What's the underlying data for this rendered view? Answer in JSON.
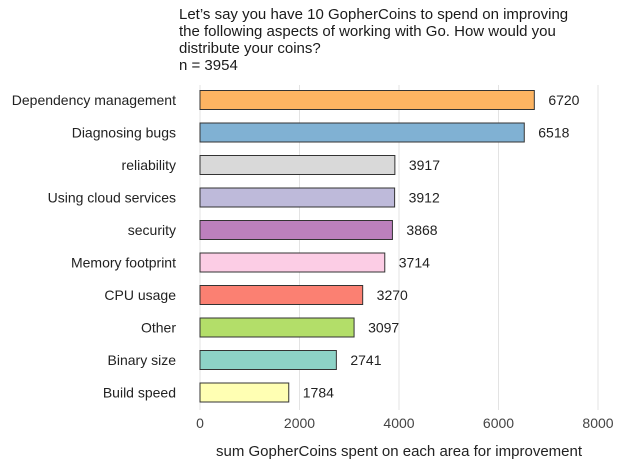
{
  "title_lines": [
    "Let’s say you have 10 GopherCoins to spend on improving",
    "the following aspects of working with Go. How would you",
    "distribute your coins?"
  ],
  "subtitle": "n = 3954",
  "chart_data": {
    "type": "bar",
    "orientation": "horizontal",
    "title": "Let’s say you have 10 GopherCoins to spend on improving the following aspects of working with Go. How would you distribute your coins?",
    "subtitle": "n = 3954",
    "xlabel": "sum GopherCoins spent on each area for improvement",
    "ylabel": "",
    "xlim": [
      0,
      8000
    ],
    "xticks": [
      0,
      2000,
      4000,
      6000,
      8000
    ],
    "xtick_labels": [
      "0",
      "2000",
      "4000",
      "6000",
      "8000"
    ],
    "grid": true,
    "categories": [
      "Dependency management",
      "Diagnosing bugs",
      "reliability",
      "Using cloud services",
      "security",
      "Memory footprint",
      "CPU usage",
      "Other",
      "Binary size",
      "Build speed"
    ],
    "values": [
      6720,
      6518,
      3917,
      3912,
      3868,
      3714,
      3270,
      3097,
      2741,
      1784
    ],
    "value_labels": [
      "6720",
      "6518",
      "3917",
      "3912",
      "3868",
      "3714",
      "3270",
      "3097",
      "2741",
      "1784"
    ],
    "colors": [
      "#FDB462",
      "#80B1D3",
      "#D9D9D9",
      "#BEBADA",
      "#BC80BD",
      "#FCCDE5",
      "#FB8072",
      "#B3DE69",
      "#8DD3C7",
      "#FFFFB3"
    ]
  }
}
